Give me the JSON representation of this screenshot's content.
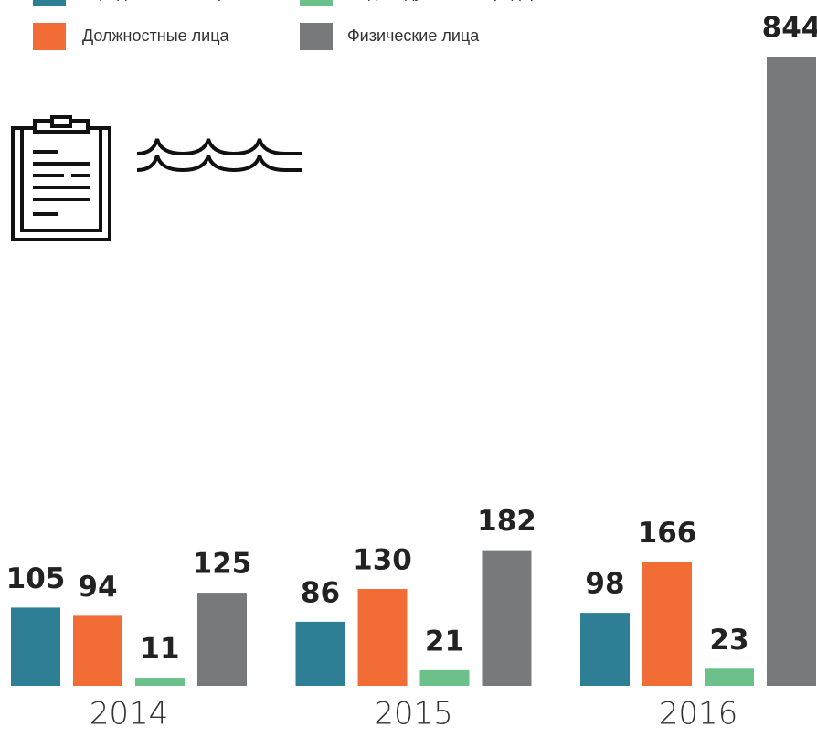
{
  "chart_data": {
    "type": "bar",
    "categories": [
      "2014",
      "2015",
      "2016"
    ],
    "series": [
      {
        "name": "Юридические лица",
        "color": "#2e7f96",
        "values": [
          105,
          86,
          98
        ]
      },
      {
        "name": "Должностные лица",
        "color": "#f26c35",
        "values": [
          94,
          130,
          166
        ]
      },
      {
        "name": "Индивидуальные предприниматели",
        "color": "#6cc18a",
        "values": [
          11,
          21,
          23
        ]
      },
      {
        "name": "Физические лица",
        "color": "#77797b",
        "values": [
          125,
          182,
          844
        ]
      }
    ]
  }
}
